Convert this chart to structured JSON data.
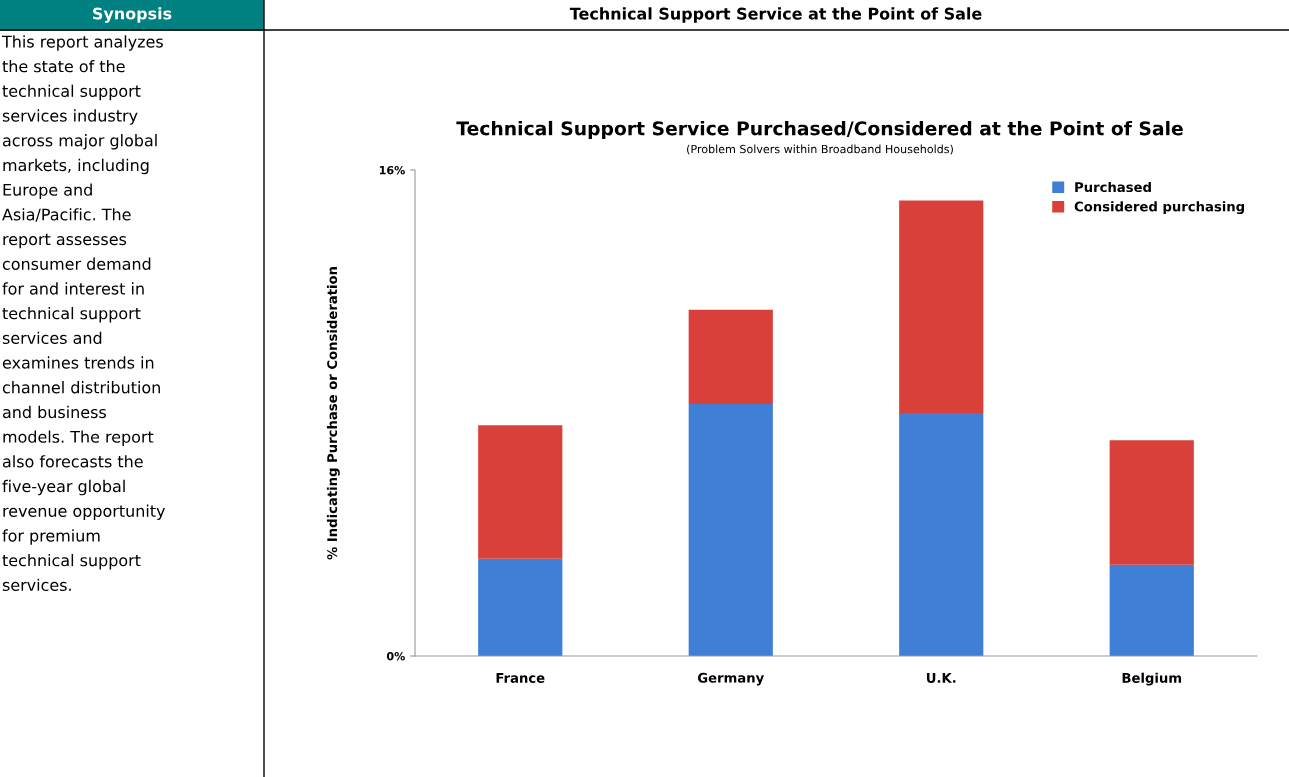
{
  "chart_data": [
    {
      "type": "other",
      "title": "Synopsis",
      "color": "#008080",
      "annotations": [
        "This report analyzes",
        "the state of the",
        "technical support",
        "services industry",
        "across major global",
        "markets, including",
        "Europe and",
        "Asia/Pacific. The",
        "report assesses",
        "consumer demand",
        "for and interest in",
        "technical support",
        "services and",
        "examines trends in",
        "channel distribution",
        "and business",
        "models. The report",
        "also forecasts the",
        "five-year global",
        "revenue opportunity",
        "for premium",
        "technical support",
        "services."
      ]
    },
    {
      "type": "bar",
      "title": "Technical Support Service Purchased/Considered at the Point of Sale",
      "subtitle": "(Problem Solvers within Broadband Households)",
      "annotations": [
        "Technical Support Service at the Point of Sale"
      ],
      "ylabel": "% Indicating Purchase or Consideration",
      "categories": [
        "France",
        "Germany",
        "U.K.",
        "Belgium"
      ],
      "stacked": true,
      "series": [
        {
          "name": "Purchased",
          "color": "#3f7fd6",
          "values": [
            3.2,
            8.3,
            8.0,
            3.0
          ]
        },
        {
          "name": "Considered purchasing",
          "color": "#d9403a",
          "values": [
            4.4,
            3.1,
            7.0,
            4.1
          ]
        }
      ],
      "ylim": [
        0,
        16
      ],
      "yticks": [
        {
          "value": 0,
          "label": "0%"
        },
        {
          "value": 16,
          "label": "16%"
        }
      ],
      "grid": false,
      "legend": "top right"
    }
  ]
}
